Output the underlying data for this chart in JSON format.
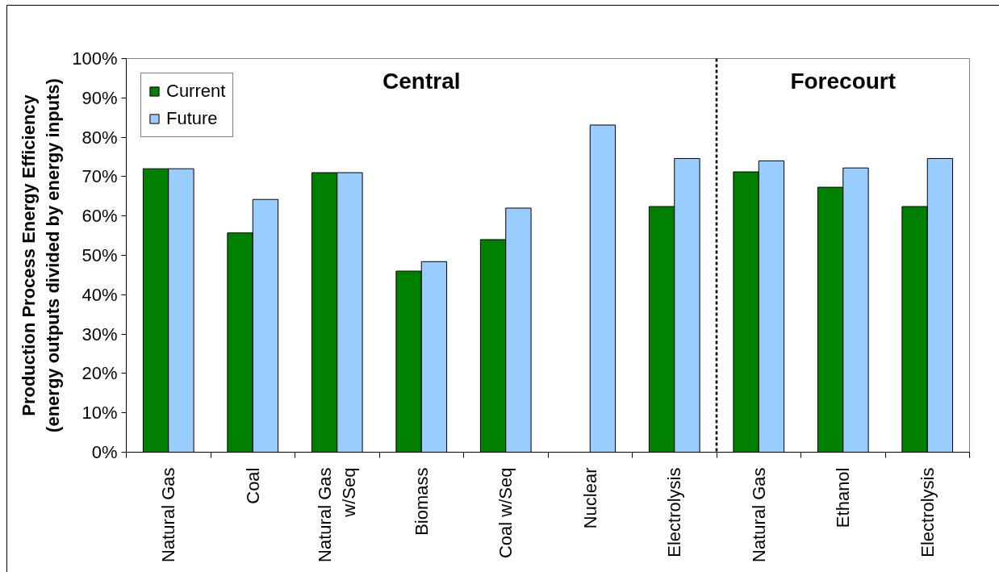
{
  "chart_data": {
    "type": "bar",
    "categories": [
      "Natural Gas",
      "Coal",
      "Natural Gas w/Seq",
      "Biomass",
      "Coal w/Seq",
      "Nuclear",
      "Electrolysis",
      "Natural Gas",
      "Ethanol",
      "Electrolysis"
    ],
    "series": [
      {
        "name": "Current",
        "color": "#008000",
        "values": [
          72,
          55.7,
          71,
          46,
          54,
          null,
          62.4,
          71.2,
          67.3,
          62.4
        ]
      },
      {
        "name": "Future",
        "color": "#99ccff",
        "values": [
          72,
          64.2,
          71,
          48.4,
          62,
          83.1,
          74.6,
          74,
          72.2,
          74.6
        ]
      }
    ],
    "ylabel": "Production Process Energy Efficiency\n(energy outputs divided by energy inputs)",
    "ylim": [
      0,
      100
    ],
    "yticks": [
      {
        "value": 0,
        "label": "0%"
      },
      {
        "value": 10,
        "label": "10%"
      },
      {
        "value": 20,
        "label": "20%"
      },
      {
        "value": 30,
        "label": "30%"
      },
      {
        "value": 40,
        "label": "40%"
      },
      {
        "value": 50,
        "label": "50%"
      },
      {
        "value": 60,
        "label": "60%"
      },
      {
        "value": 70,
        "label": "70%"
      },
      {
        "value": 80,
        "label": "80%"
      },
      {
        "value": 90,
        "label": "90%"
      },
      {
        "value": 100,
        "label": "100%"
      }
    ],
    "legend": "top left",
    "grid": false,
    "annotations": [
      "Central",
      "Forecourt"
    ]
  }
}
